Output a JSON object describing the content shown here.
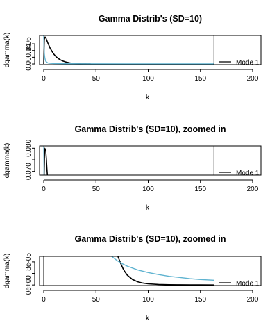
{
  "chart_data": [
    {
      "type": "line",
      "title": "Gamma Distrib's (SD=10)",
      "xlabel": "k",
      "ylabel": "dgamma(k)",
      "xlim": [
        -4,
        208
      ],
      "ylim": [
        -0.002,
        0.085
      ],
      "x_ticks": [
        0,
        50,
        100,
        150,
        200
      ],
      "y_ticks": [
        0.0,
        0.02,
        0.04,
        0.06
      ],
      "y_tick_labels": [
        "0.00",
        "",
        "0.04",
        "0.06"
      ],
      "vline_x": 163,
      "legend": {
        "placement": "bottom-right",
        "entries": [
          "Mode 1"
        ]
      },
      "series": [
        {
          "color": "#000000",
          "x": [
            0,
            0.5,
            1,
            1.5,
            2,
            3,
            4,
            5,
            6,
            8,
            10,
            12,
            15,
            18,
            21,
            25,
            30,
            35,
            40,
            45
          ],
          "y": [
            0,
            0.072,
            0.08,
            0.08,
            0.078,
            0.07,
            0.062,
            0.055,
            0.048,
            0.037,
            0.028,
            0.021,
            0.014,
            0.009,
            0.006,
            0.003,
            0.0015,
            0.0006,
            0.0002,
            0
          ]
        },
        {
          "color": "#5fb3d0",
          "x": [
            0,
            0.3,
            0.6,
            1,
            1.5,
            2,
            3,
            4,
            6,
            10,
            20,
            40,
            80,
            163
          ],
          "y": [
            0.085,
            0.05,
            0.03,
            0.02,
            0.012,
            0.008,
            0.005,
            0.003,
            0.002,
            0.0012,
            0.0008,
            0.0005,
            0.0003,
            0.0001
          ]
        }
      ]
    },
    {
      "type": "line",
      "title": "Gamma Distrib's (SD=10), zoomed in",
      "xlabel": "k",
      "ylabel": "dgamma(k)",
      "xlim": [
        -4,
        208
      ],
      "ylim": [
        0.0684,
        0.081
      ],
      "x_ticks": [
        0,
        50,
        100,
        150,
        200
      ],
      "y_ticks": [
        0.07,
        0.075,
        0.08
      ],
      "y_tick_labels": [
        "0.070",
        "",
        "0.080"
      ],
      "vline_x": 163,
      "legend": {
        "placement": "bottom-right",
        "entries": [
          "Mode 1"
        ]
      },
      "series": [
        {
          "color": "#000000",
          "x": [
            0.4,
            0.8,
            1.2,
            1.6,
            2.0,
            2.5,
            3.0,
            3.5
          ],
          "y": [
            0.0684,
            0.0785,
            0.0798,
            0.0796,
            0.0785,
            0.0755,
            0.0715,
            0.0684
          ]
        },
        {
          "color": "#5fb3d0",
          "x": [
            0.05,
            0.15,
            0.25,
            0.3
          ],
          "y": [
            0.081,
            0.076,
            0.071,
            0.0684
          ]
        }
      ]
    },
    {
      "type": "line",
      "title": "Gamma Distrib's (SD=10), zoomed in",
      "xlabel": "k",
      "ylabel": "dgamma(k)",
      "xlim": [
        -4,
        208
      ],
      "ylim": [
        -2e-06,
        9.9e-05
      ],
      "x_ticks": [
        0,
        50,
        100,
        150,
        200
      ],
      "y_ticks": [
        0,
        4e-05,
        8e-05
      ],
      "y_tick_labels": [
        "0e+00",
        "",
        "8e-05"
      ],
      "vline_x": 0,
      "legend": {
        "placement": "bottom-right",
        "entries": [
          "Mode 1"
        ]
      },
      "series": [
        {
          "color": "#000000",
          "x": [
            71,
            72,
            74,
            76,
            78,
            80,
            85,
            90,
            95,
            100,
            110,
            120,
            130,
            140,
            150,
            163
          ],
          "y": [
            9.9e-05,
            9e-05,
            7.2e-05,
            5.6e-05,
            4.4e-05,
            3.4e-05,
            1.9e-05,
            1.1e-05,
            6.5e-06,
            4e-06,
            1.8e-06,
            9e-07,
            5e-07,
            3e-07,
            2e-07,
            1e-07
          ]
        },
        {
          "color": "#5fb3d0",
          "x": [
            65,
            70,
            75,
            80,
            90,
            100,
            110,
            120,
            130,
            140,
            150,
            163
          ],
          "y": [
            9.9e-05,
            8.5e-05,
            7.4e-05,
            6.5e-05,
            5.2e-05,
            4.3e-05,
            3.6e-05,
            3e-05,
            2.6e-05,
            2.2e-05,
            1.9e-05,
            1.65e-05
          ]
        }
      ]
    }
  ]
}
